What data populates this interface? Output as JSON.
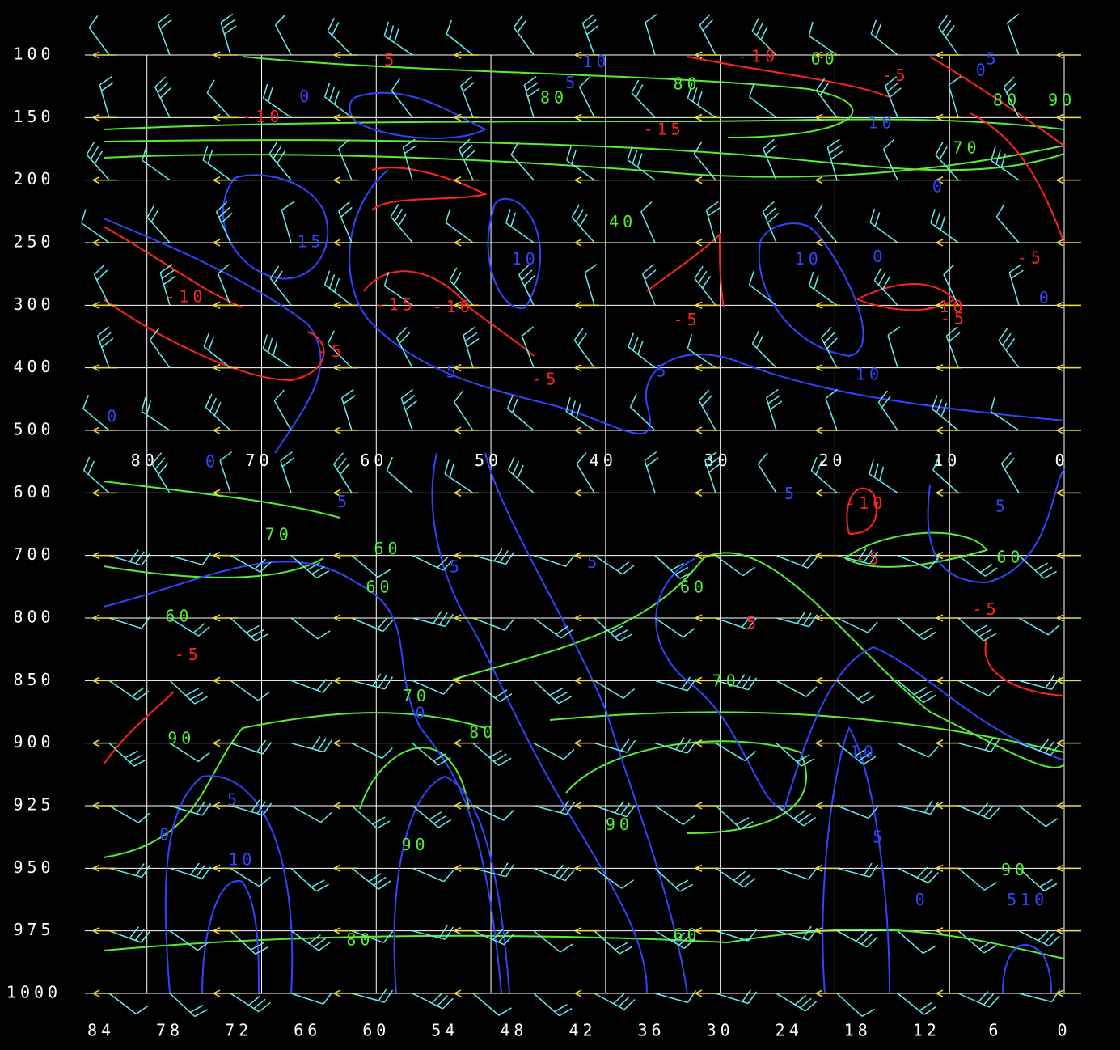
{
  "chart_data": {
    "type": "cross-section",
    "levels": [
      100,
      150,
      200,
      250,
      300,
      400,
      500,
      600,
      700,
      800,
      850,
      900,
      925,
      950,
      975,
      1000
    ],
    "xlim": [
      84,
      0
    ],
    "xticks": [
      84,
      78,
      72,
      66,
      60,
      54,
      48,
      42,
      36,
      30,
      24,
      18,
      12,
      6,
      0
    ],
    "grid_xticks": [
      80,
      70,
      60,
      50,
      40,
      30,
      20,
      10,
      0
    ],
    "grid": true,
    "annotations": [
      {
        "text": "80",
        "x": 32.9,
        "y": 124,
        "color": "#55ee33"
      },
      {
        "text": "80",
        "x": 44.5,
        "y": 135,
        "color": "#55ee33"
      },
      {
        "text": "60",
        "x": 20.9,
        "y": 104,
        "color": "#55ee33"
      },
      {
        "text": "80",
        "x": 5,
        "y": 137,
        "color": "#55ee33"
      },
      {
        "text": "90",
        "x": 0.2,
        "y": 137,
        "color": "#55ee33"
      },
      {
        "text": "70",
        "x": 8.5,
        "y": 175,
        "color": "#55ee33"
      },
      {
        "text": "40",
        "x": 38.5,
        "y": 234,
        "color": "#55ee33"
      },
      {
        "text": "70",
        "x": 68.5,
        "y": 668,
        "color": "#55ee33"
      },
      {
        "text": "60",
        "x": 59,
        "y": 691,
        "color": "#55ee33"
      },
      {
        "text": "60",
        "x": 59.7,
        "y": 752,
        "color": "#55ee33"
      },
      {
        "text": "60",
        "x": 32.3,
        "y": 752,
        "color": "#55ee33"
      },
      {
        "text": "60",
        "x": 77.2,
        "y": 799,
        "color": "#55ee33"
      },
      {
        "text": "70",
        "x": 56.5,
        "y": 863,
        "color": "#55ee33"
      },
      {
        "text": "80",
        "x": 50.7,
        "y": 892,
        "color": "#55ee33"
      },
      {
        "text": "90",
        "x": 77,
        "y": 897,
        "color": "#55ee33"
      },
      {
        "text": "70",
        "x": 29.5,
        "y": 851,
        "color": "#55ee33"
      },
      {
        "text": "90",
        "x": 56.6,
        "y": 941,
        "color": "#55ee33"
      },
      {
        "text": "90",
        "x": 38.8,
        "y": 933,
        "color": "#55ee33"
      },
      {
        "text": "80",
        "x": 61.4,
        "y": 979,
        "color": "#55ee33"
      },
      {
        "text": "60",
        "x": 32.9,
        "y": 977,
        "color": "#55ee33"
      },
      {
        "text": "90",
        "x": 4.3,
        "y": 951,
        "color": "#55ee33"
      },
      {
        "text": "60",
        "x": 4.7,
        "y": 704,
        "color": "#55ee33"
      },
      {
        "text": "0",
        "x": 66.1,
        "y": 134,
        "color": "#3344ff"
      },
      {
        "text": "5",
        "x": 42.9,
        "y": 123,
        "color": "#3344ff"
      },
      {
        "text": "10",
        "x": 40.8,
        "y": 106,
        "color": "#3344ff"
      },
      {
        "text": "0",
        "x": 7.1,
        "y": 113,
        "color": "#3344ff"
      },
      {
        "text": "5",
        "x": 6.2,
        "y": 104,
        "color": "#3344ff"
      },
      {
        "text": "10",
        "x": 15.9,
        "y": 155,
        "color": "#3344ff"
      },
      {
        "text": "0",
        "x": 10.9,
        "y": 206,
        "color": "#3344ff"
      },
      {
        "text": "10",
        "x": 22.3,
        "y": 264,
        "color": "#3344ff"
      },
      {
        "text": "0",
        "x": 16.1,
        "y": 262,
        "color": "#3344ff"
      },
      {
        "text": "10",
        "x": 47,
        "y": 264,
        "color": "#3344ff"
      },
      {
        "text": "15",
        "x": 65.7,
        "y": 250,
        "color": "#3344ff"
      },
      {
        "text": "0",
        "x": 1.6,
        "y": 295,
        "color": "#3344ff"
      },
      {
        "text": "5",
        "x": 35,
        "y": 407,
        "color": "#3344ff"
      },
      {
        "text": "5",
        "x": 53.3,
        "y": 408,
        "color": "#3344ff"
      },
      {
        "text": "10",
        "x": 17,
        "y": 412,
        "color": "#3344ff"
      },
      {
        "text": "0",
        "x": 82.9,
        "y": 479,
        "color": "#3344ff"
      },
      {
        "text": "0",
        "x": 74.3,
        "y": 552,
        "color": "#3344ff"
      },
      {
        "text": "5",
        "x": 62.8,
        "y": 616,
        "color": "#3344ff"
      },
      {
        "text": "5",
        "x": 53,
        "y": 720,
        "color": "#3344ff"
      },
      {
        "text": "5",
        "x": 41,
        "y": 713,
        "color": "#3344ff"
      },
      {
        "text": "5",
        "x": 23.8,
        "y": 603,
        "color": "#3344ff"
      },
      {
        "text": "5",
        "x": 5.4,
        "y": 623,
        "color": "#3344ff"
      },
      {
        "text": "0",
        "x": 56,
        "y": 877,
        "color": "#3344ff"
      },
      {
        "text": "5",
        "x": 72.4,
        "y": 923,
        "color": "#3344ff"
      },
      {
        "text": "0",
        "x": 78.3,
        "y": 937,
        "color": "#3344ff"
      },
      {
        "text": "10",
        "x": 71.7,
        "y": 947,
        "color": "#3344ff"
      },
      {
        "text": "10",
        "x": 17.5,
        "y": 904,
        "color": "#3344ff"
      },
      {
        "text": "5",
        "x": 16.1,
        "y": 938,
        "color": "#3344ff"
      },
      {
        "text": "0",
        "x": 12.4,
        "y": 963,
        "color": "#3344ff"
      },
      {
        "text": "510",
        "x": 3.2,
        "y": 963,
        "color": "#3344ff"
      },
      {
        "text": "-5",
        "x": 14.7,
        "y": 117,
        "color": "#ff2222"
      },
      {
        "text": "-10",
        "x": 26.7,
        "y": 102,
        "color": "#ff2222"
      },
      {
        "text": "-5",
        "x": 2.9,
        "y": 263,
        "color": "#ff2222"
      },
      {
        "text": "-10",
        "x": 76.6,
        "y": 294,
        "color": "#ff2222"
      },
      {
        "text": "-15",
        "x": 58.3,
        "y": 301,
        "color": "#ff2222"
      },
      {
        "text": "-10",
        "x": 53.3,
        "y": 304,
        "color": "#ff2222"
      },
      {
        "text": "-5",
        "x": 32.9,
        "y": 325,
        "color": "#ff2222"
      },
      {
        "text": "-5",
        "x": 63.9,
        "y": 375,
        "color": "#ff2222"
      },
      {
        "text": "-5",
        "x": 45.2,
        "y": 420,
        "color": "#ff2222"
      },
      {
        "text": "-10",
        "x": 17.3,
        "y": 618,
        "color": "#ff2222"
      },
      {
        "text": "-5",
        "x": 6.8,
        "y": 788,
        "color": "#ff2222"
      },
      {
        "text": "-5",
        "x": 76.4,
        "y": 830,
        "color": "#ff2222"
      },
      {
        "text": "5",
        "x": 27.1,
        "y": 805,
        "color": "#ff2222"
      },
      {
        "text": "-5",
        "x": 17,
        "y": 707,
        "color": "#ff2222"
      },
      {
        "text": "-10",
        "x": 10.3,
        "y": 304,
        "color": "#ff2222"
      },
      {
        "text": "-5",
        "x": 9.6,
        "y": 323,
        "color": "#ff2222"
      },
      {
        "text": "-10",
        "x": 69.9,
        "y": 150,
        "color": "#ff2222"
      },
      {
        "text": "-15",
        "x": 34.9,
        "y": 160,
        "color": "#ff2222"
      },
      {
        "text": "-5",
        "x": 59.3,
        "y": 105,
        "color": "#ff2222"
      }
    ]
  }
}
